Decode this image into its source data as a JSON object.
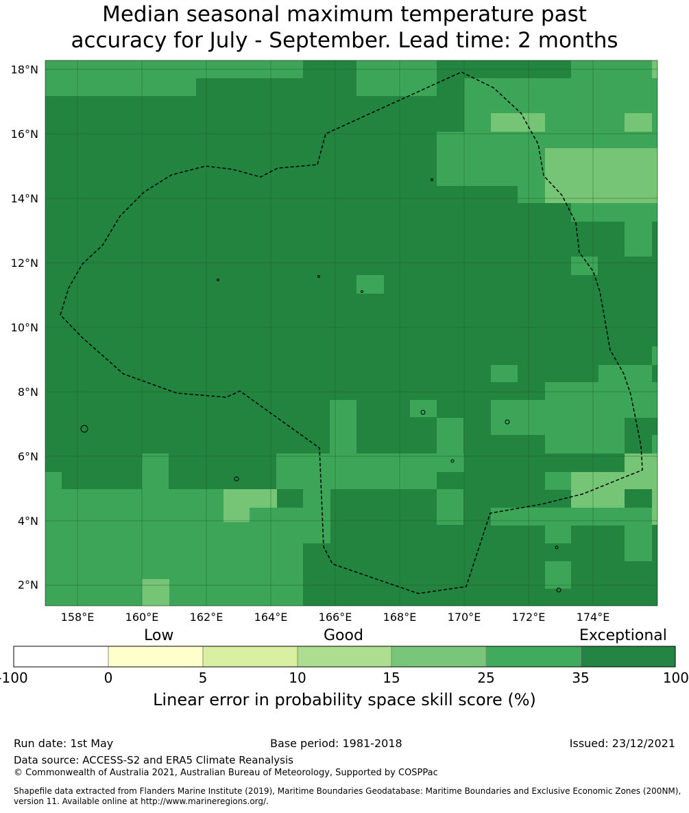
{
  "title": {
    "line1": "Median seasonal maximum temperature past",
    "line2": "accuracy for July - September. Lead time: 2 months"
  },
  "map": {
    "lat_ticks": [
      "18°N",
      "16°N",
      "14°N",
      "12°N",
      "10°N",
      "8°N",
      "6°N",
      "4°N",
      "2°N"
    ],
    "lon_ticks": [
      "158°E",
      "160°E",
      "162°E",
      "164°E",
      "166°E",
      "168°E",
      "170°E",
      "172°E",
      "174°E"
    ],
    "lon_range": [
      157,
      176
    ],
    "lat_range": [
      1.4,
      18.3
    ],
    "grid": true,
    "boundary_style": "dashed",
    "category_colors": {
      "exceptional": "#23843f",
      "very_good": "#3da557",
      "good": "#76c476"
    }
  },
  "colorbar": {
    "words": [
      "Low",
      "Good",
      "Exceptional"
    ],
    "ticks": [
      "-100",
      "0",
      "5",
      "10",
      "15",
      "25",
      "35",
      "100"
    ],
    "colors": [
      "#ffffff",
      "#ffffcc",
      "#d9f0a3",
      "#addd8e",
      "#78c679",
      "#41ab5d",
      "#238443"
    ],
    "label": "Linear error in probability space skill score (%)"
  },
  "footer": {
    "run_date": "Run date: 1st May",
    "base_period": "Base period: 1981-2018",
    "issued": "Issued: 23/12/2021",
    "data_source": "Data source: ACCESS-S2 and ERA5 Climate Reanalysis",
    "copyright": "© Commonwealth of Australia 2021, Australian Bureau of Meteorology, Supported by COSPPac",
    "shapefile_line1": "Shapefile data extracted from Flanders Marine Institute (2019), Maritime Boundaries Geodatabase: Maritime Boundaries and Exclusive Economic Zones (200NM),",
    "shapefile_line2": "version 11. Available online at http://www.marineregions.org/."
  }
}
